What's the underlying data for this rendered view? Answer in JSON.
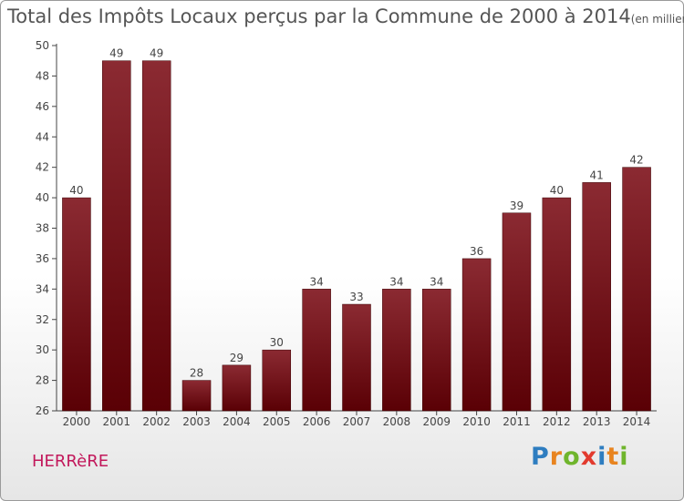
{
  "chart_data": {
    "type": "bar",
    "title": "Total des Impôts Locaux perçus par la Commune de 2000 à 2014",
    "unit_label": "(en milliers d'€)",
    "categories": [
      "2000",
      "2001",
      "2002",
      "2003",
      "2004",
      "2005",
      "2006",
      "2007",
      "2008",
      "2009",
      "2010",
      "2011",
      "2012",
      "2013",
      "2014"
    ],
    "values": [
      40,
      49,
      49,
      28,
      29,
      30,
      34,
      33,
      34,
      34,
      36,
      39,
      40,
      41,
      42
    ],
    "ylim": [
      26,
      50
    ],
    "yticks": [
      26,
      28,
      30,
      32,
      34,
      36,
      38,
      40,
      42,
      44,
      46,
      48,
      50
    ],
    "xlabel": "",
    "ylabel": "",
    "grid": false,
    "bar_color_top": "#8b2a32",
    "bar_color_bottom": "#5a0005"
  },
  "commune": "HERRèRE",
  "brand": {
    "text": "Proxiti",
    "letter_colors": [
      "#2e7dc0",
      "#e8841f",
      "#6fb52c",
      "#e23a2e",
      "#2e7dc0",
      "#e8841f",
      "#6fb52c"
    ]
  }
}
